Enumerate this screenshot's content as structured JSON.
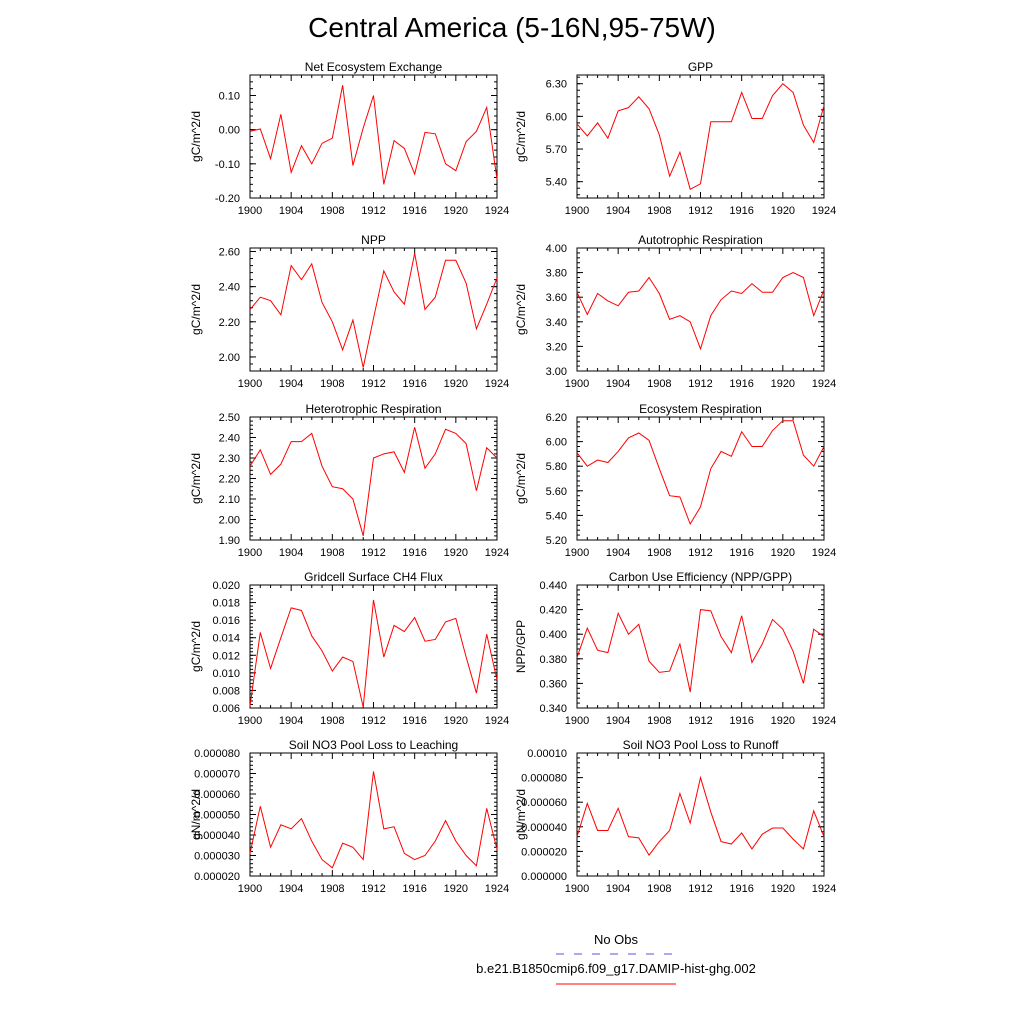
{
  "title": "Central America (5-16N,95-75W)",
  "colors": {
    "series": "#ff0000",
    "obs": "#5555dd",
    "axis": "#000000"
  },
  "legend": {
    "obs_label": "No Obs",
    "model_label": "b.e21.B1850cmip6.f09_g17.DAMIP-hist-ghg.002"
  },
  "chart_data": [
    {
      "type": "line",
      "title": "Net Ecosystem Exchange",
      "ylabel": "gC/m^2/d",
      "xlim": [
        1900,
        1924
      ],
      "ylim": [
        -0.2,
        0.16
      ],
      "xticks": [
        "1900",
        "1904",
        "1908",
        "1912",
        "1916",
        "1920",
        "1924"
      ],
      "yticks": [
        "-0.20",
        "-0.10",
        "0.00",
        "0.10"
      ],
      "yticks_values": [
        -0.2,
        -0.1,
        0.0,
        0.1
      ],
      "x": [
        1900,
        1901,
        1902,
        1903,
        1904,
        1905,
        1906,
        1907,
        1908,
        1909,
        1910,
        1911,
        1912,
        1913,
        1914,
        1915,
        1916,
        1917,
        1918,
        1919,
        1920,
        1921,
        1922,
        1923,
        1924
      ],
      "series": [
        {
          "values": [
            -0.005,
            0.002,
            -0.085,
            0.045,
            -0.125,
            -0.047,
            -0.1,
            -0.04,
            -0.025,
            0.13,
            -0.105,
            0.005,
            0.1,
            -0.16,
            -0.032,
            -0.055,
            -0.13,
            -0.008,
            -0.012,
            -0.1,
            -0.12,
            -0.035,
            -0.005,
            0.065,
            -0.145
          ]
        }
      ]
    },
    {
      "type": "line",
      "title": "GPP",
      "ylabel": "gC/m^2/d",
      "xlim": [
        1900,
        1924
      ],
      "ylim": [
        5.25,
        6.38
      ],
      "xticks": [
        "1900",
        "1904",
        "1908",
        "1912",
        "1916",
        "1920",
        "1924"
      ],
      "yticks": [
        "5.40",
        "5.70",
        "6.00",
        "6.30"
      ],
      "yticks_values": [
        5.4,
        5.7,
        6.0,
        6.3
      ],
      "x": [
        1900,
        1901,
        1902,
        1903,
        1904,
        1905,
        1906,
        1907,
        1908,
        1909,
        1910,
        1911,
        1912,
        1913,
        1914,
        1915,
        1916,
        1917,
        1918,
        1919,
        1920,
        1921,
        1922,
        1923,
        1924
      ],
      "series": [
        {
          "values": [
            5.93,
            5.82,
            5.94,
            5.8,
            6.05,
            6.08,
            6.18,
            6.07,
            5.83,
            5.45,
            5.67,
            5.33,
            5.38,
            5.95,
            5.95,
            5.95,
            6.22,
            5.98,
            5.98,
            6.19,
            6.3,
            6.22,
            5.92,
            5.76,
            6.1
          ]
        }
      ]
    },
    {
      "type": "line",
      "title": "NPP",
      "ylabel": "gC/m^2/d",
      "xlim": [
        1900,
        1924
      ],
      "ylim": [
        1.92,
        2.62
      ],
      "xticks": [
        "1900",
        "1904",
        "1908",
        "1912",
        "1916",
        "1920",
        "1924"
      ],
      "yticks": [
        "2.00",
        "2.20",
        "2.40",
        "2.60"
      ],
      "yticks_values": [
        2.0,
        2.2,
        2.4,
        2.6
      ],
      "x": [
        1900,
        1901,
        1902,
        1903,
        1904,
        1905,
        1906,
        1907,
        1908,
        1909,
        1910,
        1911,
        1912,
        1913,
        1914,
        1915,
        1916,
        1917,
        1918,
        1919,
        1920,
        1921,
        1922,
        1923,
        1924
      ],
      "series": [
        {
          "values": [
            2.27,
            2.34,
            2.32,
            2.24,
            2.52,
            2.44,
            2.53,
            2.31,
            2.2,
            2.04,
            2.21,
            1.94,
            2.22,
            2.49,
            2.37,
            2.3,
            2.59,
            2.27,
            2.34,
            2.55,
            2.55,
            2.42,
            2.16,
            2.3,
            2.45
          ]
        }
      ]
    },
    {
      "type": "line",
      "title": "Autotrophic Respiration",
      "ylabel": "gC/m^2/d",
      "xlim": [
        1900,
        1924
      ],
      "ylim": [
        3.0,
        4.0
      ],
      "xticks": [
        "1900",
        "1904",
        "1908",
        "1912",
        "1916",
        "1920",
        "1924"
      ],
      "yticks": [
        "3.00",
        "3.20",
        "3.40",
        "3.60",
        "3.80",
        "4.00"
      ],
      "yticks_values": [
        3.0,
        3.2,
        3.4,
        3.6,
        3.8,
        4.0
      ],
      "x": [
        1900,
        1901,
        1902,
        1903,
        1904,
        1905,
        1906,
        1907,
        1908,
        1909,
        1910,
        1911,
        1912,
        1913,
        1914,
        1915,
        1916,
        1917,
        1918,
        1919,
        1920,
        1921,
        1922,
        1923,
        1924
      ],
      "series": [
        {
          "values": [
            3.64,
            3.46,
            3.63,
            3.57,
            3.53,
            3.64,
            3.65,
            3.76,
            3.63,
            3.42,
            3.45,
            3.4,
            3.18,
            3.45,
            3.58,
            3.65,
            3.63,
            3.71,
            3.64,
            3.64,
            3.76,
            3.8,
            3.76,
            3.45,
            3.66
          ]
        }
      ]
    },
    {
      "type": "line",
      "title": "Heterotrophic Respiration",
      "ylabel": "gC/m^2/d",
      "xlim": [
        1900,
        1924
      ],
      "ylim": [
        1.9,
        2.5
      ],
      "xticks": [
        "1900",
        "1904",
        "1908",
        "1912",
        "1916",
        "1920",
        "1924"
      ],
      "yticks": [
        "1.90",
        "2.00",
        "2.10",
        "2.20",
        "2.30",
        "2.40",
        "2.50"
      ],
      "yticks_values": [
        1.9,
        2.0,
        2.1,
        2.2,
        2.3,
        2.4,
        2.5
      ],
      "x": [
        1900,
        1901,
        1902,
        1903,
        1904,
        1905,
        1906,
        1907,
        1908,
        1909,
        1910,
        1911,
        1912,
        1913,
        1914,
        1915,
        1916,
        1917,
        1918,
        1919,
        1920,
        1921,
        1922,
        1923,
        1924
      ],
      "series": [
        {
          "values": [
            2.26,
            2.34,
            2.22,
            2.27,
            2.38,
            2.38,
            2.42,
            2.26,
            2.16,
            2.15,
            2.1,
            1.92,
            2.3,
            2.32,
            2.33,
            2.23,
            2.45,
            2.25,
            2.32,
            2.44,
            2.42,
            2.37,
            2.14,
            2.35,
            2.3
          ]
        }
      ]
    },
    {
      "type": "line",
      "title": "Ecosystem Respiration",
      "ylabel": "gC/m^2/d",
      "xlim": [
        1900,
        1924
      ],
      "ylim": [
        5.2,
        6.2
      ],
      "xticks": [
        "1900",
        "1904",
        "1908",
        "1912",
        "1916",
        "1920",
        "1924"
      ],
      "yticks": [
        "5.20",
        "5.40",
        "5.60",
        "5.80",
        "6.00",
        "6.20"
      ],
      "yticks_values": [
        5.2,
        5.4,
        5.6,
        5.8,
        6.0,
        6.2
      ],
      "x": [
        1900,
        1901,
        1902,
        1903,
        1904,
        1905,
        1906,
        1907,
        1908,
        1909,
        1910,
        1911,
        1912,
        1913,
        1914,
        1915,
        1916,
        1917,
        1918,
        1919,
        1920,
        1921,
        1922,
        1923,
        1924
      ],
      "series": [
        {
          "values": [
            5.91,
            5.8,
            5.85,
            5.83,
            5.92,
            6.03,
            6.07,
            6.01,
            5.78,
            5.56,
            5.55,
            5.33,
            5.47,
            5.78,
            5.92,
            5.88,
            6.08,
            5.96,
            5.96,
            6.09,
            6.17,
            6.17,
            5.89,
            5.8,
            5.96
          ]
        }
      ]
    },
    {
      "type": "line",
      "title": "Gridcell Surface CH4 Flux",
      "ylabel": "gC/m^2/d",
      "xlim": [
        1900,
        1924
      ],
      "ylim": [
        0.006,
        0.02
      ],
      "xticks": [
        "1900",
        "1904",
        "1908",
        "1912",
        "1916",
        "1920",
        "1924"
      ],
      "yticks": [
        "0.006",
        "0.008",
        "0.010",
        "0.012",
        "0.014",
        "0.016",
        "0.018",
        "0.020"
      ],
      "yticks_values": [
        0.006,
        0.008,
        0.01,
        0.012,
        0.014,
        0.016,
        0.018,
        0.02
      ],
      "x": [
        1900,
        1901,
        1902,
        1903,
        1904,
        1905,
        1906,
        1907,
        1908,
        1909,
        1910,
        1911,
        1912,
        1913,
        1914,
        1915,
        1916,
        1917,
        1918,
        1919,
        1920,
        1921,
        1922,
        1923,
        1924
      ],
      "series": [
        {
          "values": [
            0.0062,
            0.0146,
            0.0105,
            0.014,
            0.0174,
            0.0171,
            0.0142,
            0.0125,
            0.0102,
            0.0118,
            0.0113,
            0.0061,
            0.0183,
            0.0118,
            0.0154,
            0.0147,
            0.0163,
            0.0136,
            0.0138,
            0.0158,
            0.0162,
            0.0118,
            0.0077,
            0.0144,
            0.0092
          ]
        }
      ]
    },
    {
      "type": "line",
      "title": "Carbon Use Efficiency (NPP/GPP)",
      "ylabel": "NPP/GPP",
      "xlim": [
        1900,
        1924
      ],
      "ylim": [
        0.34,
        0.44
      ],
      "xticks": [
        "1900",
        "1904",
        "1908",
        "1912",
        "1916",
        "1920",
        "1924"
      ],
      "yticks": [
        "0.340",
        "0.360",
        "0.380",
        "0.400",
        "0.420",
        "0.440"
      ],
      "yticks_values": [
        0.34,
        0.36,
        0.38,
        0.4,
        0.42,
        0.44
      ],
      "x": [
        1900,
        1901,
        1902,
        1903,
        1904,
        1905,
        1906,
        1907,
        1908,
        1909,
        1910,
        1911,
        1912,
        1913,
        1914,
        1915,
        1916,
        1917,
        1918,
        1919,
        1920,
        1921,
        1922,
        1923,
        1924
      ],
      "series": [
        {
          "values": [
            0.381,
            0.405,
            0.387,
            0.385,
            0.417,
            0.4,
            0.408,
            0.378,
            0.369,
            0.37,
            0.392,
            0.353,
            0.42,
            0.419,
            0.398,
            0.385,
            0.415,
            0.377,
            0.392,
            0.412,
            0.404,
            0.386,
            0.36,
            0.404,
            0.398
          ]
        }
      ]
    },
    {
      "type": "line",
      "title": "Soil NO3 Pool Loss to Leaching",
      "ylabel": "gN/m^2/d",
      "xlim": [
        1900,
        1924
      ],
      "ylim": [
        2e-05,
        8e-05
      ],
      "xticks": [
        "1900",
        "1904",
        "1908",
        "1912",
        "1916",
        "1920",
        "1924"
      ],
      "yticks": [
        "0.000020",
        "0.000030",
        "0.000040",
        "0.000050",
        "0.000060",
        "0.000070",
        "0.000080"
      ],
      "yticks_values": [
        2e-05,
        3e-05,
        4e-05,
        5e-05,
        6e-05,
        7e-05,
        8e-05
      ],
      "x": [
        1900,
        1901,
        1902,
        1903,
        1904,
        1905,
        1906,
        1907,
        1908,
        1909,
        1910,
        1911,
        1912,
        1913,
        1914,
        1915,
        1916,
        1917,
        1918,
        1919,
        1920,
        1921,
        1922,
        1923,
        1924
      ],
      "series": [
        {
          "values": [
            3.1e-05,
            5.4e-05,
            3.4e-05,
            4.5e-05,
            4.3e-05,
            4.8e-05,
            3.7e-05,
            2.8e-05,
            2.4e-05,
            3.6e-05,
            3.4e-05,
            2.8e-05,
            7.1e-05,
            4.3e-05,
            4.4e-05,
            3.1e-05,
            2.8e-05,
            3e-05,
            3.7e-05,
            4.7e-05,
            3.7e-05,
            3e-05,
            2.5e-05,
            5.3e-05,
            3.3e-05
          ]
        }
      ]
    },
    {
      "type": "line",
      "title": "Soil NO3 Pool Loss to Runoff",
      "ylabel": "gN/m^2/d",
      "xlim": [
        1900,
        1924
      ],
      "ylim": [
        0.0,
        0.0001
      ],
      "xticks": [
        "1900",
        "1904",
        "1908",
        "1912",
        "1916",
        "1920",
        "1924"
      ],
      "yticks": [
        "0.000000",
        "0.000020",
        "0.000040",
        "0.000060",
        "0.000080",
        "0.00010"
      ],
      "yticks_values": [
        0.0,
        2e-05,
        4e-05,
        6e-05,
        8e-05,
        0.0001
      ],
      "x": [
        1900,
        1901,
        1902,
        1903,
        1904,
        1905,
        1906,
        1907,
        1908,
        1909,
        1910,
        1911,
        1912,
        1913,
        1914,
        1915,
        1916,
        1917,
        1918,
        1919,
        1920,
        1921,
        1922,
        1923,
        1924
      ],
      "series": [
        {
          "values": [
            3.2e-05,
            5.9e-05,
            3.7e-05,
            3.7e-05,
            5.5e-05,
            3.2e-05,
            3.1e-05,
            1.7e-05,
            2.8e-05,
            3.7e-05,
            6.7e-05,
            4.3e-05,
            8e-05,
            5.2e-05,
            2.8e-05,
            2.6e-05,
            3.5e-05,
            2.2e-05,
            3.4e-05,
            3.9e-05,
            3.9e-05,
            3e-05,
            2.2e-05,
            5.3e-05,
            3.2e-05
          ]
        }
      ]
    }
  ]
}
